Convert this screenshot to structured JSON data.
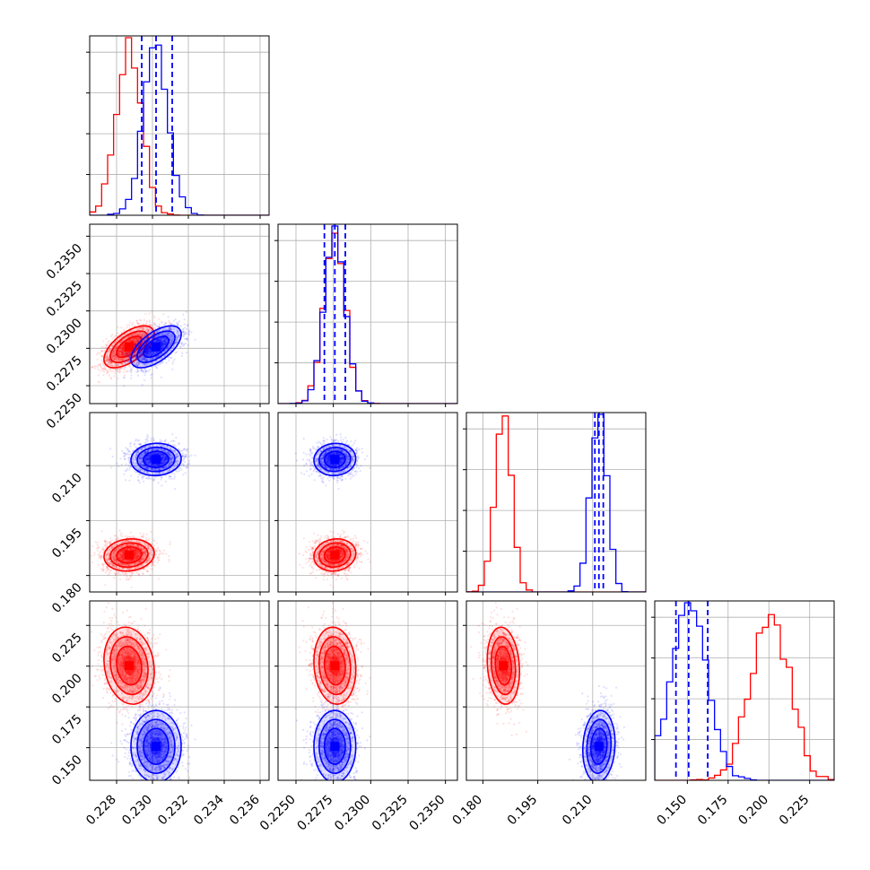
{
  "chart_data": {
    "type": "corner",
    "parameters": 4,
    "colors": {
      "red": "#ff0000",
      "blue": "#0000ff",
      "grid": "#b0b0b0"
    },
    "series": [
      {
        "color": "#ff0000",
        "mean": [
          0.2287,
          0.2276,
          0.1856,
          0.2003
        ],
        "std": [
          0.0007,
          0.0007,
          0.0022,
          0.0118
        ],
        "corr": [
          [
            1,
            0.6,
            0.1,
            -0.15
          ],
          [
            0.6,
            1,
            0.1,
            -0.1
          ],
          [
            0.1,
            0.1,
            1,
            -0.15
          ],
          [
            -0.15,
            -0.1,
            -0.15,
            1
          ]
        ]
      },
      {
        "color": "#0000ff",
        "mean": [
          0.2302,
          0.2276,
          0.2117,
          0.1508
        ],
        "std": [
          0.0007,
          0.0007,
          0.0022,
          0.011
        ],
        "corr": [
          [
            1,
            0.6,
            0.05,
            0
          ],
          [
            0.6,
            1,
            0.05,
            0
          ],
          [
            0.05,
            0.05,
            1,
            0.1
          ],
          [
            0,
            0,
            0.1,
            1
          ]
        ],
        "quantiles": [
          [
            0.2294,
            0.2302,
            0.2311
          ],
          [
            0.2269,
            0.2276,
            0.2283
          ],
          [
            0.2106,
            0.2117,
            0.2129
          ],
          [
            0.143,
            0.1508,
            0.1625
          ]
        ]
      }
    ],
    "axes": [
      {
        "range": [
          0.2265,
          0.2365
        ],
        "ticks": [
          0.228,
          0.23,
          0.232,
          0.234,
          0.236
        ],
        "tick_labels": [
          "0.228",
          "0.230",
          "0.232",
          "0.234",
          "0.236"
        ]
      },
      {
        "range": [
          0.2238,
          0.2358
        ],
        "ticks": [
          0.225,
          0.2275,
          0.23,
          0.2325,
          0.235
        ],
        "tick_labels": [
          "0.2250",
          "0.2275",
          "0.2300",
          "0.2325",
          "0.2350"
        ]
      },
      {
        "range": [
          0.1755,
          0.2245
        ],
        "ticks": [
          0.18,
          0.195,
          0.21
        ],
        "tick_labels": [
          "0.180",
          "0.195",
          "0.210"
        ]
      },
      {
        "range": [
          0.13,
          0.24
        ],
        "ticks": [
          0.15,
          0.175,
          0.2,
          0.225
        ],
        "tick_labels": [
          "0.150",
          "0.175",
          "0.200",
          "0.225"
        ]
      }
    ],
    "grid": true,
    "legend": "none"
  }
}
